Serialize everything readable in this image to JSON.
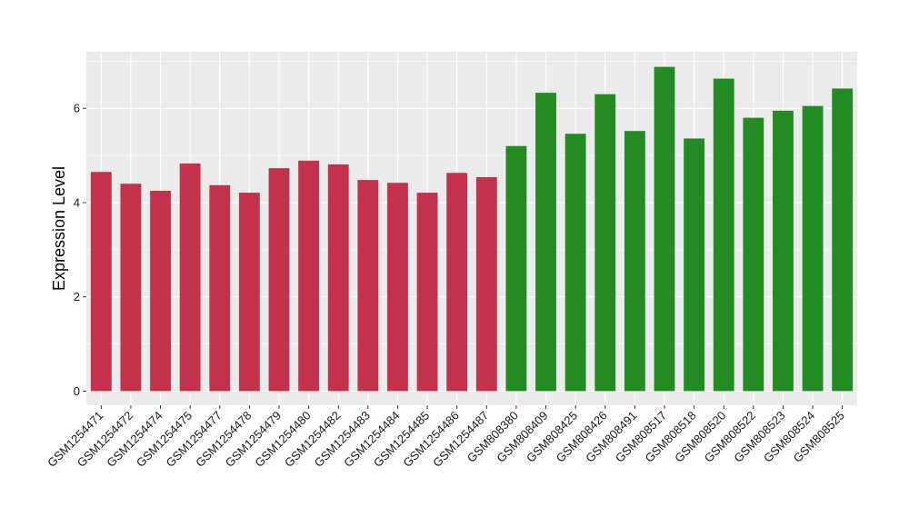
{
  "chart_data": {
    "type": "bar",
    "title": "",
    "xlabel": "",
    "ylabel": "Expression Level",
    "ylim": [
      -0.3,
      7.2
    ],
    "yticks": [
      0,
      2,
      4,
      6
    ],
    "grid": true,
    "legend": "none",
    "categories": [
      "GSM1254471",
      "GSM1254472",
      "GSM1254474",
      "GSM1254475",
      "GSM1254477",
      "GSM1254478",
      "GSM1254479",
      "GSM1254480",
      "GSM1254482",
      "GSM1254483",
      "GSM1254484",
      "GSM1254485",
      "GSM1254486",
      "GSM1254487",
      "GSM808380",
      "GSM808409",
      "GSM808425",
      "GSM808426",
      "GSM808491",
      "GSM808517",
      "GSM808518",
      "GSM808520",
      "GSM808522",
      "GSM808523",
      "GSM808524",
      "GSM808525"
    ],
    "values": [
      4.65,
      4.4,
      4.25,
      4.83,
      4.37,
      4.21,
      4.73,
      4.89,
      4.81,
      4.48,
      4.42,
      4.21,
      4.63,
      4.54,
      5.2,
      6.33,
      5.46,
      6.3,
      5.52,
      6.88,
      5.36,
      6.63,
      5.8,
      5.95,
      6.05,
      6.42
    ],
    "bar_groups": [
      {
        "color": "#c4314b",
        "count": 14
      },
      {
        "color": "#228b22",
        "count": 12
      }
    ],
    "panel_background": "#ebebeb",
    "grid_color": "#ffffff"
  }
}
